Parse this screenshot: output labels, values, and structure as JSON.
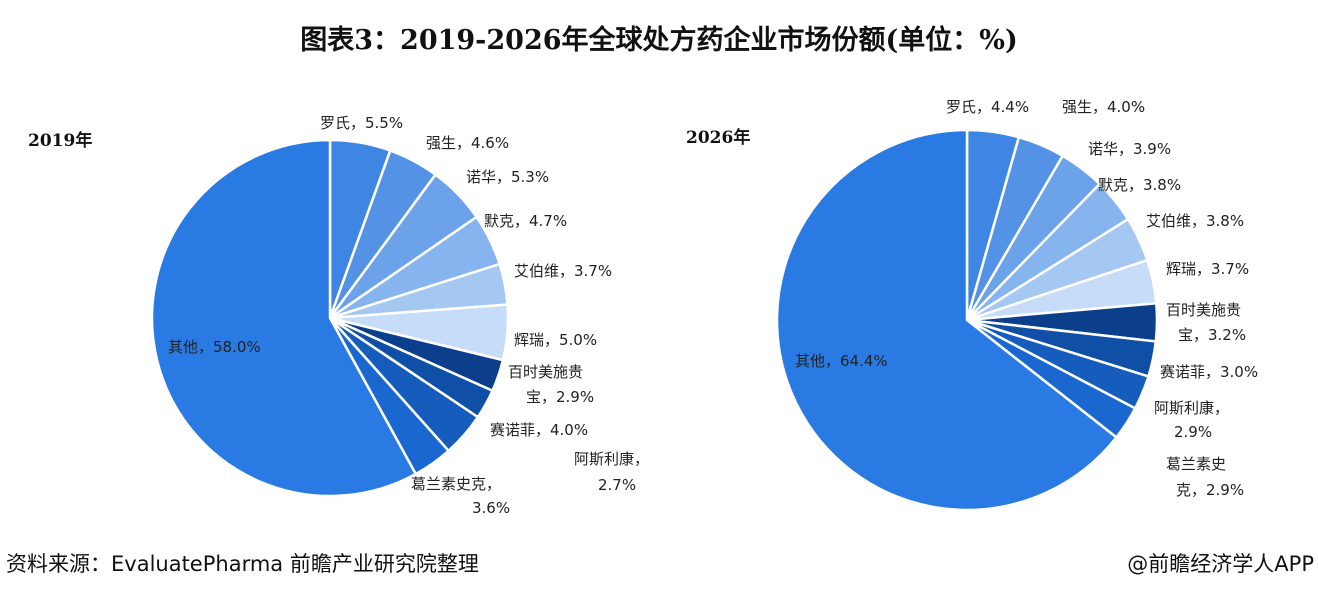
{
  "title": "图表3：2019-2026年全球处方药企业市场份额(单位：%)",
  "footer": {
    "source": "资料来源：EvaluatePharma 前瞻产业研究院整理",
    "credit": "@前瞻经济学人APP"
  },
  "chart_data": [
    {
      "type": "pie",
      "year_label": "2019年",
      "start": "12 o'clock",
      "direction": "clockwise",
      "slices": [
        {
          "name": "罗氏",
          "value": 5.5,
          "label": [
            "罗氏，5.5%"
          ],
          "color": "#3f85e3"
        },
        {
          "name": "强生",
          "value": 4.6,
          "label": [
            "强生，4.6%"
          ],
          "color": "#5492e6"
        },
        {
          "name": "诺华",
          "value": 5.3,
          "label": [
            "诺华，5.3%"
          ],
          "color": "#6ba2ea"
        },
        {
          "name": "默克",
          "value": 4.7,
          "label": [
            "默克，4.7%"
          ],
          "color": "#86b4ee"
        },
        {
          "name": "艾伯维",
          "value": 3.7,
          "label": [
            "艾伯维，3.7%"
          ],
          "color": "#a5c8f3"
        },
        {
          "name": "辉瑞",
          "value": 5.0,
          "label": [
            "辉瑞，5.0%"
          ],
          "color": "#c6dcf8"
        },
        {
          "name": "百时美施贵宝",
          "value": 2.9,
          "label": [
            "百时美施贵",
            "宝，2.9%"
          ],
          "color": "#0b3f8c"
        },
        {
          "name": "阿斯利康",
          "value": 2.7,
          "label": [
            "阿斯利康，",
            "2.7%"
          ],
          "color": "#104fa6"
        },
        {
          "name": "赛诺菲",
          "value": 4.0,
          "label": [
            "赛诺菲，4.0%"
          ],
          "color": "#155cbc"
        },
        {
          "name": "葛兰素史克",
          "value": 3.6,
          "label": [
            "葛兰素史克，",
            "3.6%"
          ],
          "color": "#1a68cf"
        },
        {
          "name": "其他",
          "value": 58.0,
          "label": [
            "其他，58.0%"
          ],
          "color": "#2a7ae4"
        }
      ]
    },
    {
      "type": "pie",
      "year_label": "2026年",
      "start": "12 o'clock",
      "direction": "clockwise",
      "slices": [
        {
          "name": "罗氏",
          "value": 4.4,
          "label": [
            "罗氏，4.4%"
          ],
          "color": "#3f85e3"
        },
        {
          "name": "强生",
          "value": 4.0,
          "label": [
            "强生，4.0%"
          ],
          "color": "#5492e6"
        },
        {
          "name": "诺华",
          "value": 3.9,
          "label": [
            "诺华，3.9%"
          ],
          "color": "#6ba2ea"
        },
        {
          "name": "默克",
          "value": 3.8,
          "label": [
            "默克，3.8%"
          ],
          "color": "#86b4ee"
        },
        {
          "name": "艾伯维",
          "value": 3.8,
          "label": [
            "艾伯维，3.8%"
          ],
          "color": "#a5c8f3"
        },
        {
          "name": "辉瑞",
          "value": 3.7,
          "label": [
            "辉瑞，3.7%"
          ],
          "color": "#c6dcf8"
        },
        {
          "name": "百时美施贵宝",
          "value": 3.2,
          "label": [
            "百时美施贵",
            "宝，3.2%"
          ],
          "color": "#0b3f8c"
        },
        {
          "name": "赛诺菲",
          "value": 3.0,
          "label": [
            "赛诺菲，3.0%"
          ],
          "color": "#104fa6"
        },
        {
          "name": "阿斯利康",
          "value": 2.9,
          "label": [
            "阿斯利康，",
            "2.9%"
          ],
          "color": "#155cbc"
        },
        {
          "name": "葛兰素史克",
          "value": 2.9,
          "label": [
            "葛兰素史",
            "克，2.9%"
          ],
          "color": "#1a68cf"
        },
        {
          "name": "其他",
          "value": 64.4,
          "label": [
            "其他，64.4%"
          ],
          "color": "#2a7ae4"
        }
      ]
    }
  ]
}
